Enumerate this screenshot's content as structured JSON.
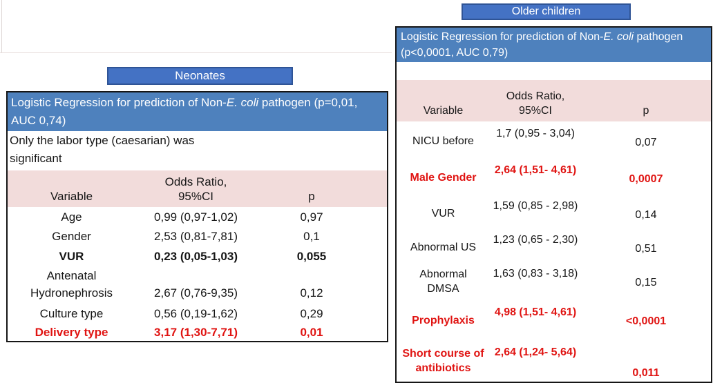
{
  "colors": {
    "title_blue": "#4472C4",
    "title_border": "#2F5496",
    "table_header_blue": "#4E81BD",
    "column_header_pink": "#F2DCDB",
    "highlight_red": "#E01412"
  },
  "neonates": {
    "title": "Neonates",
    "header": {
      "prefix": "Logistic Regression for prediction of Non-",
      "italic": "E. coli",
      "suffix": " pathogen (p=0,01, AUC 0,74)"
    },
    "note": "Only the labor type (caesarian) was\nsignificant",
    "columns": {
      "variable": "Variable",
      "or": "Odds Ratio,\n95%CI",
      "p": "p"
    },
    "rows": [
      {
        "variable": "Age",
        "or": "0,99 (0,97-1,02)",
        "p": "0,97"
      },
      {
        "variable": "Gender",
        "or": "2,53 (0,81-7,81)",
        "p": "0,1"
      },
      {
        "variable": "VUR",
        "or": "0,23 (0,05-1,03)",
        "p": "0,055"
      },
      {
        "variable": "Antenatal\nHydronephrosis",
        "or": "2,67 (0,76-9,35)",
        "p": "0,12"
      },
      {
        "variable": "Culture type",
        "or": "0,56 (0,19-1,62)",
        "p": "0,29"
      },
      {
        "variable": "Delivery type",
        "or": "3,17 (1,30-7,71)",
        "p": "0,01"
      }
    ]
  },
  "older": {
    "title": "Older children",
    "header": {
      "prefix": "Logistic Regression for prediction of Non-",
      "italic": "E. coli",
      "suffix": " pathogen (p<0,0001, AUC 0,79)"
    },
    "columns": {
      "variable": "Variable",
      "or": "Odds Ratio,\n95%CI",
      "p": "p"
    },
    "rows": [
      {
        "variable": "NICU before",
        "or": "1,7 (0,95 - 3,04)",
        "p": "0,07"
      },
      {
        "variable": "Male Gender",
        "or": "2,64 (1,51- 4,61)",
        "p": "0,0007"
      },
      {
        "variable": "VUR",
        "or": "1,59 (0,85 - 2,98)",
        "p": "0,14"
      },
      {
        "variable": "Abnormal US",
        "or": "1,23 (0,65 - 2,30)",
        "p": "0,51"
      },
      {
        "variable": "Abnormal\nDMSA",
        "or": "1,63 (0,83 - 3,18)",
        "p": "0,15"
      },
      {
        "variable": "Prophylaxis",
        "or": "4,98 (1,51- 4,61)",
        "p": "<0,0001"
      },
      {
        "variable": "Short course of antibiotics",
        "or": "2,64 (1,24- 5,64)",
        "p": "0,011"
      }
    ]
  }
}
